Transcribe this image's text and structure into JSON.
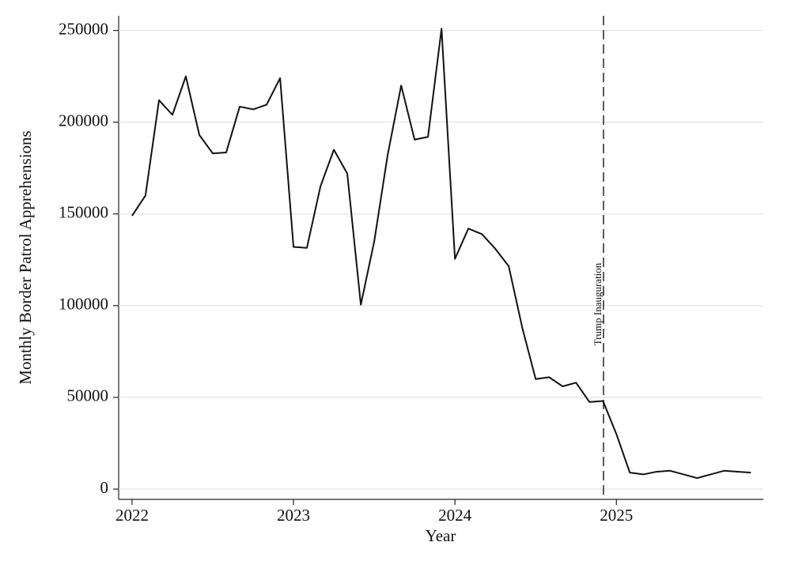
{
  "chart_data": {
    "type": "line",
    "x_label": "Year",
    "y_label": "Monthly Border Patrol Apprehensions",
    "x": [
      2022,
      2022.083,
      2022.167,
      2022.25,
      2022.333,
      2022.417,
      2022.5,
      2022.583,
      2022.667,
      2022.75,
      2022.833,
      2022.917,
      2023,
      2023.083,
      2023.167,
      2023.25,
      2023.333,
      2023.417,
      2023.5,
      2023.583,
      2023.667,
      2023.75,
      2023.833,
      2023.917,
      2024,
      2024.083,
      2024.167,
      2024.25,
      2024.333,
      2024.417,
      2024.5,
      2024.583,
      2024.667,
      2024.75,
      2024.833,
      2024.917,
      2025,
      2025.083,
      2025.167,
      2025.25,
      2025.333,
      2025.417,
      2025.5,
      2025.583,
      2025.667,
      2025.75,
      2025.833
    ],
    "values": [
      149000,
      160000,
      212000,
      204000,
      225000,
      193000,
      183000,
      183500,
      208500,
      207000,
      209500,
      224000,
      132000,
      131500,
      165000,
      185000,
      172000,
      100500,
      135000,
      182000,
      220000,
      190500,
      192000,
      251000,
      125500,
      142000,
      139000,
      131000,
      121500,
      88000,
      60000,
      61000,
      56000,
      58000,
      47500,
      48000,
      30000,
      9000,
      8000,
      9500,
      10000,
      8000,
      6000,
      8000,
      10000,
      9500,
      9000
    ],
    "color": "#111111",
    "xlim": [
      2021.917,
      2025.91
    ],
    "xticks": [
      2022,
      2023,
      2024,
      2025
    ],
    "ylim": [
      -5600,
      258000
    ],
    "yticks": [
      0,
      50000,
      100000,
      150000,
      200000,
      250000
    ],
    "grid": true,
    "vline": {
      "x": 2024.92,
      "label": "Trump Inauguration"
    }
  }
}
